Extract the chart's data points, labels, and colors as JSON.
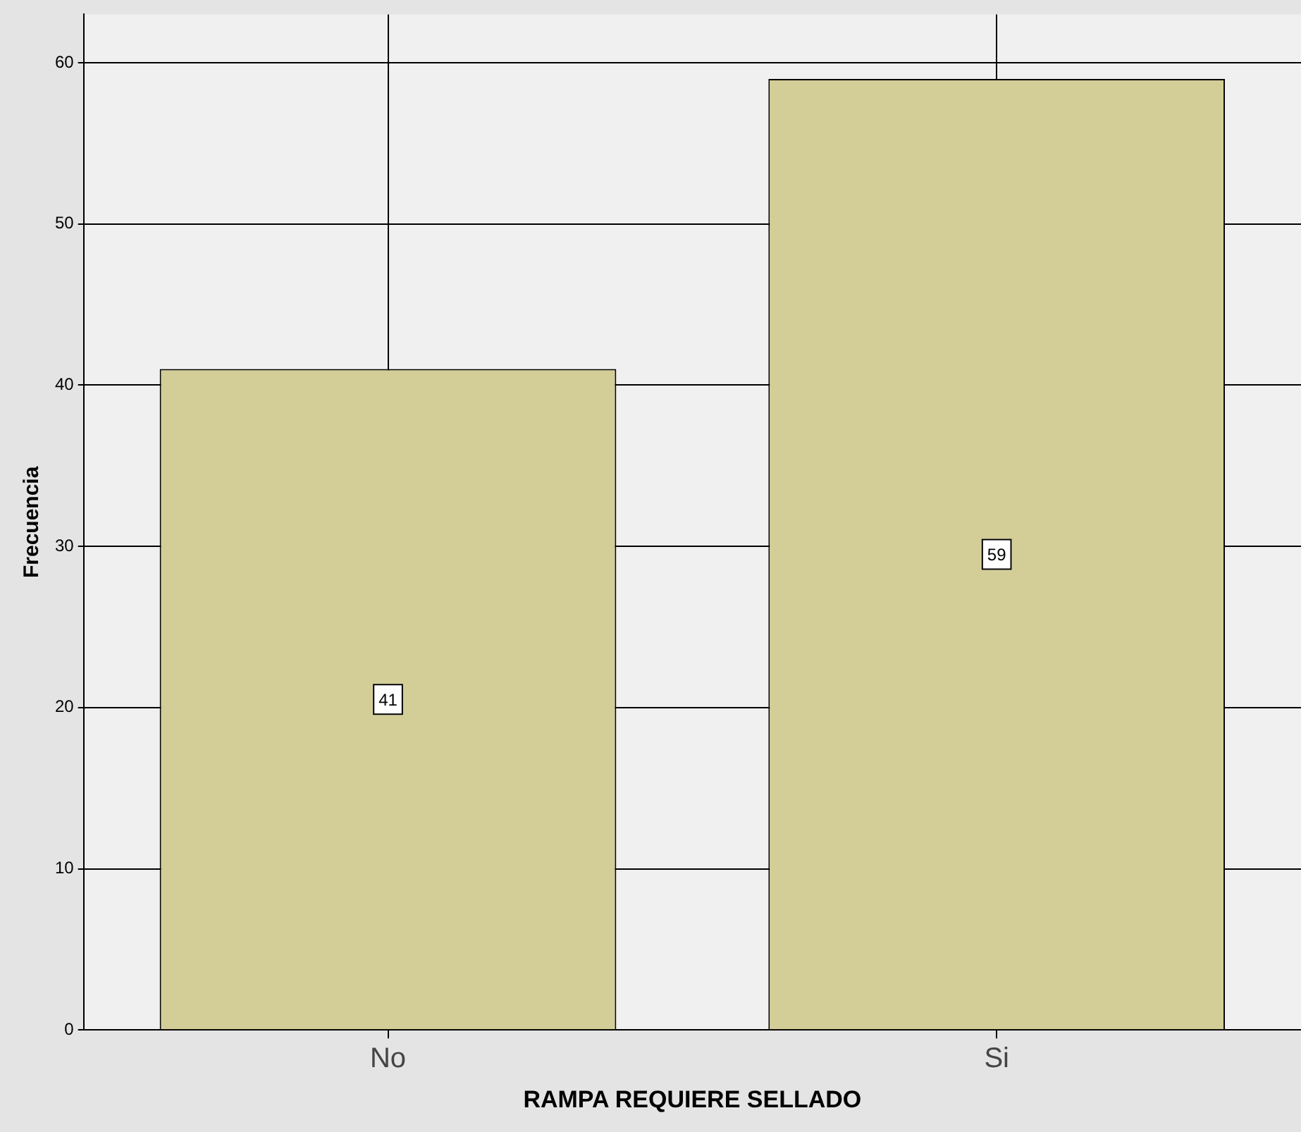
{
  "chart_data": {
    "type": "bar",
    "xlabel": "RAMPA REQUIERE SELLADO",
    "ylabel": "Frecuencia",
    "categories": [
      "No",
      "Si"
    ],
    "values": [
      41,
      59
    ],
    "color": "#d3ce97",
    "ylim": [
      0,
      63
    ],
    "yticks": [
      0,
      10,
      20,
      30,
      40,
      50,
      60
    ],
    "grid": true,
    "data_labels": true,
    "legend": false
  }
}
